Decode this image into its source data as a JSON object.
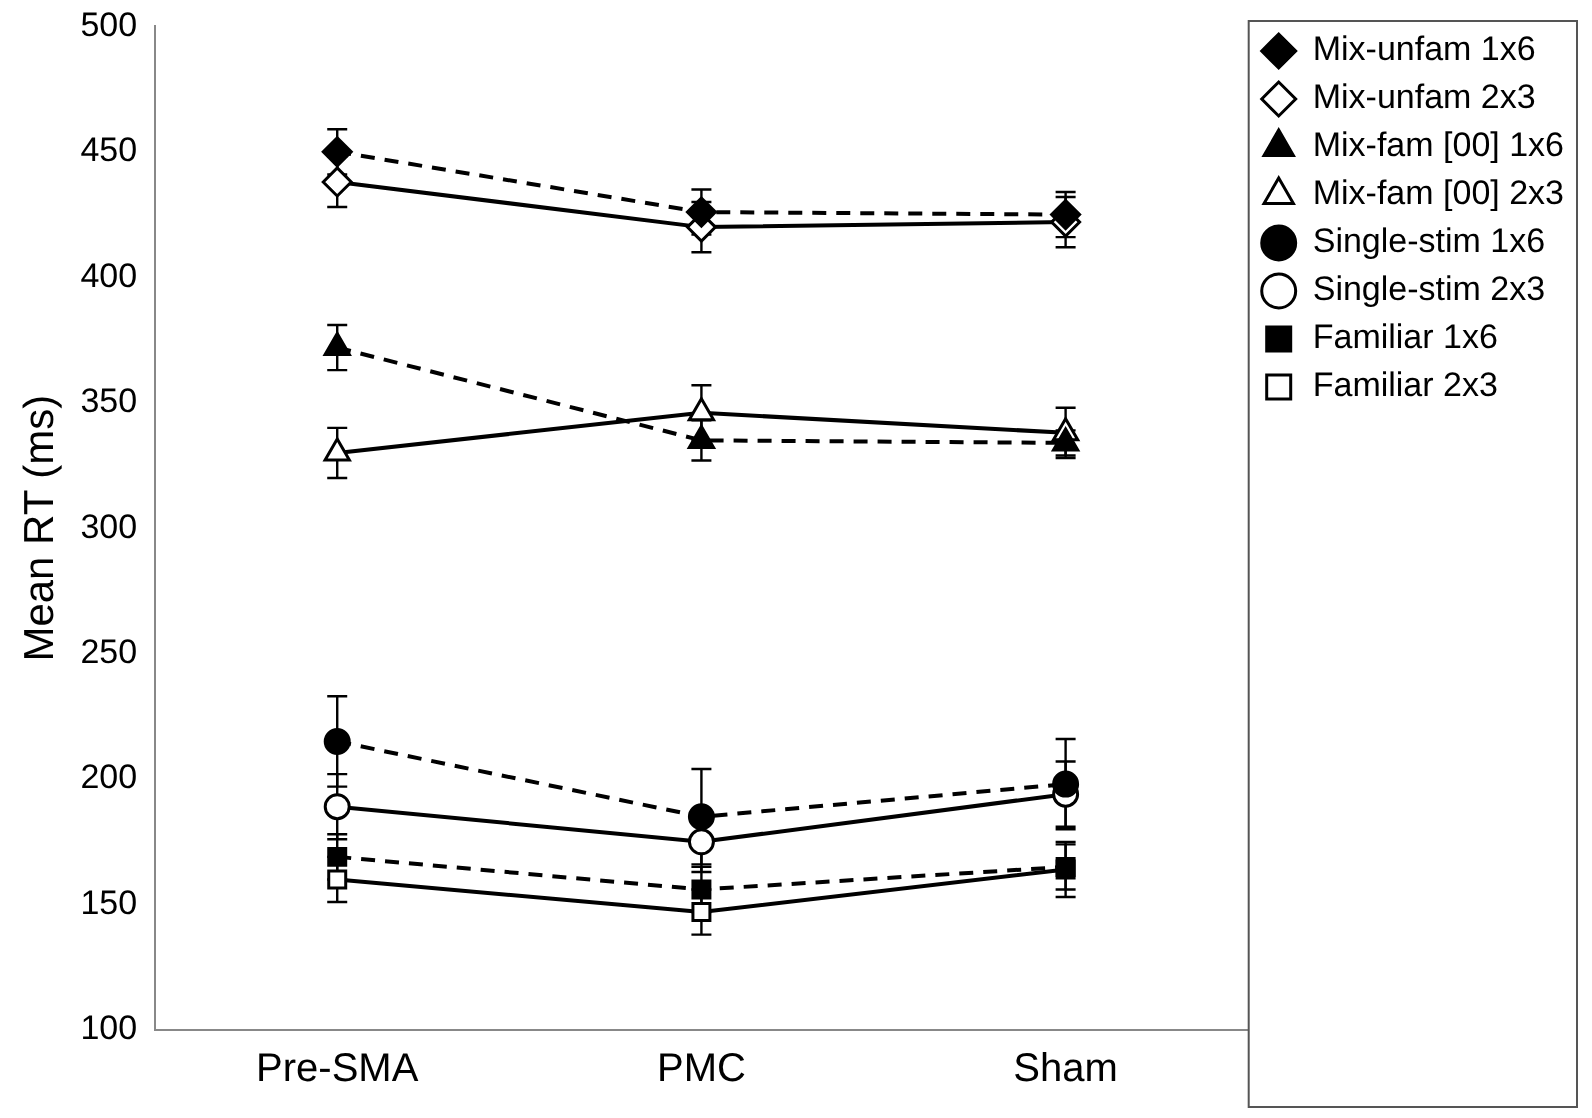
{
  "chart_data": {
    "type": "line",
    "ylabel": "Mean RT (ms)",
    "categories": [
      "Pre-SMA",
      "PMC",
      "Sham"
    ],
    "ylim": [
      100,
      500
    ],
    "yticks": [
      100,
      150,
      200,
      250,
      300,
      350,
      400,
      450,
      500
    ],
    "grid": false,
    "legend": "top right",
    "series": [
      {
        "name": "Mix-unfam 1x6",
        "color": "#000000",
        "marker": "diamond",
        "line_style": "dashed",
        "values": [
          450,
          426,
          425
        ],
        "errors": [
          9,
          9,
          9
        ]
      },
      {
        "name": "Mix-unfam 2x3",
        "color": "#000000",
        "marker": "diamond",
        "line_style": "solid",
        "values": [
          438,
          420,
          422
        ],
        "errors": [
          10,
          10,
          10
        ]
      },
      {
        "name": "Mix-fam [00] 1x6",
        "color": "#000000",
        "marker": "triangle",
        "line_style": "dashed",
        "values": [
          372,
          335,
          334
        ],
        "errors": [
          9,
          8,
          5
        ]
      },
      {
        "name": "Mix-fam [00] 2x3",
        "color": "#000000",
        "marker": "triangle",
        "line_style": "solid",
        "values": [
          330,
          346,
          338
        ],
        "errors": [
          10,
          11,
          10
        ]
      },
      {
        "name": "Single-stim 1x6",
        "color": "#000000",
        "marker": "circle",
        "line_style": "dashed",
        "values": [
          215,
          185,
          198
        ],
        "errors": [
          18,
          19,
          18
        ]
      },
      {
        "name": "Single-stim 2x3",
        "color": "#000000",
        "marker": "circle",
        "line_style": "solid",
        "values": [
          189,
          175,
          194
        ],
        "errors": [
          13,
          12,
          13
        ]
      },
      {
        "name": "Familiar 1x6",
        "color": "#000000",
        "marker": "square",
        "line_style": "dashed",
        "values": [
          169,
          156,
          165
        ],
        "errors": [
          9,
          9,
          9
        ]
      },
      {
        "name": "Familiar 2x3",
        "color": "#000000",
        "marker": "square",
        "line_style": "solid",
        "values": [
          160,
          147,
          164
        ],
        "errors": [
          9,
          9,
          11
        ]
      }
    ]
  }
}
